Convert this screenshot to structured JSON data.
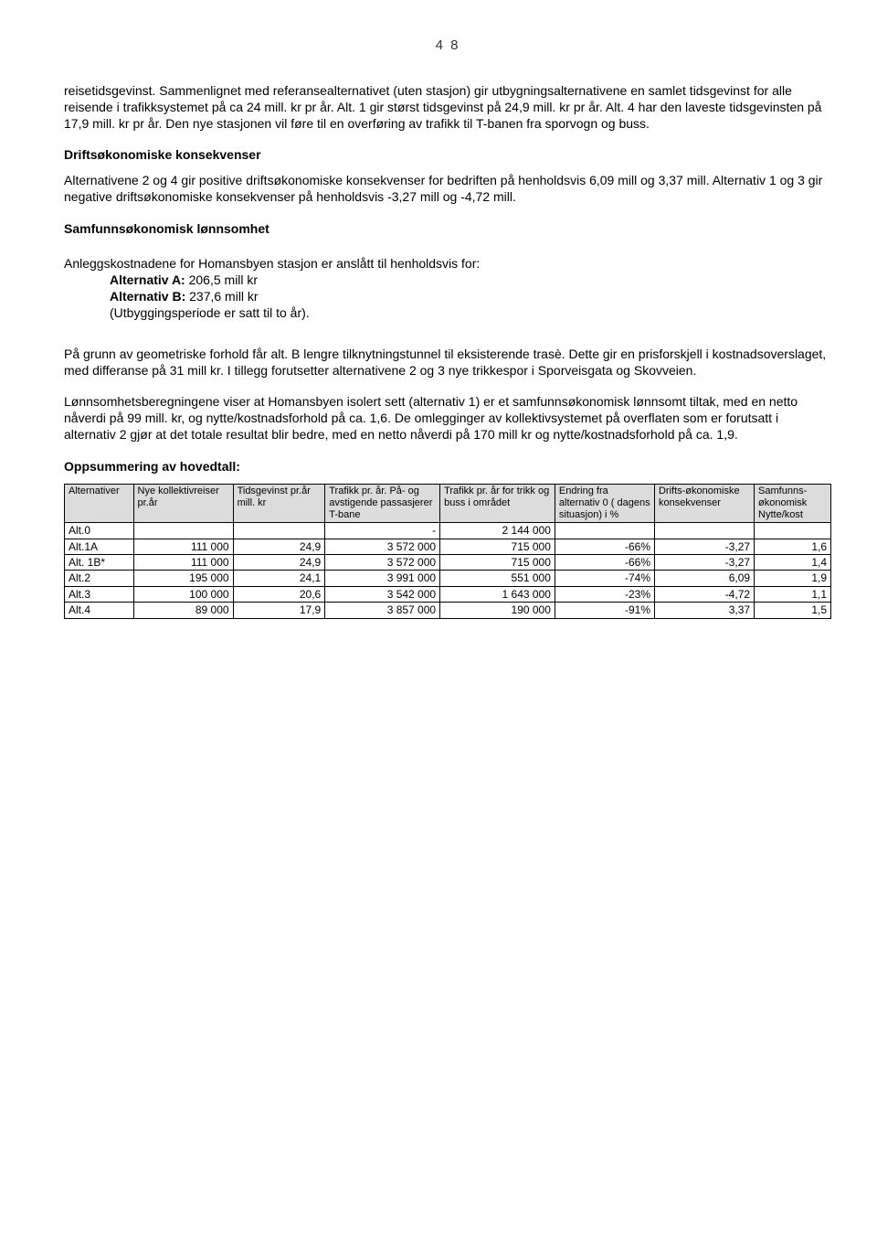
{
  "page_number": "4 8",
  "paragraphs": {
    "p1": "reisetidsgevinst. Sammenlignet med referansealternativet (uten stasjon) gir utbygningsalternativene en samlet tidsgevinst for alle reisende i trafikksystemet på ca 24 mill. kr pr år.  Alt. 1 gir størst tidsgevinst på 24,9 mill. kr pr år. Alt. 4 har den laveste tidsgevinsten på 17,9 mill. kr pr år. Den nye stasjonen vil føre til en overføring av trafikk til T-banen fra sporvogn og buss.",
    "h1": "Driftsøkonomiske konsekvenser",
    "p2": "Alternativene 2 og 4 gir positive driftsøkonomiske konsekvenser for bedriften på henholdsvis 6,09 mill og 3,37 mill. Alternativ 1 og 3 gir negative driftsøkonomiske konsekvenser på henholdsvis -3,27 mill og -4,72 mill.",
    "h2": "Samfunnsøkonomisk lønnsomhet",
    "p3a": "Anleggskostnadene for Homansbyen stasjon er anslått til henholdsvis for:",
    "altA_label": "Alternativ A:",
    "altA_val": " 206,5 mill kr",
    "altB_label": "Alternativ B:",
    "altB_val": " 237,6 mill kr",
    "p3d": "(Utbyggingsperiode er satt til to år).",
    "p4": "På grunn av geometriske forhold får alt. B lengre tilknytningstunnel til eksisterende trasè. Dette gir en prisforskjell i kostnadsoverslaget, med differanse på 31 mill kr.  I tillegg forutsetter alternativene 2 og 3 nye trikkespor i Sporveisgata og Skovveien.",
    "p5": "Lønnsomhetsberegningene viser at Homansbyen isolert sett (alternativ 1) er et samfunnsøkonomisk lønnsomt tiltak, med en netto nåverdi på 99 mill. kr, og nytte/kostnadsforhold på ca. 1,6.  De omlegginger av kollektivsystemet på overflaten som er forutsatt i alternativ 2 gjør at det totale resultat blir bedre, med en netto nåverdi på 170 mill kr og nytte/kostnadsforhold på ca. 1,9.",
    "h3": "Oppsummering av hovedtall:"
  },
  "table": {
    "header_bg": "#dcdcdc",
    "columns": [
      "Alternativer",
      "Nye kollektivreiser pr.år",
      "Tidsgevinst pr.år mill. kr",
      "Trafikk pr. år. På- og avstigende passasjerer T-bane",
      "Trafikk pr. år for trikk og buss i området",
      "Endring fra alternativ 0 ( dagens situasjon) i %",
      "Drifts-økonomiske konsekvenser",
      "Samfunns-økonomisk Nytte/kost"
    ],
    "rows": [
      [
        "Alt.0",
        "",
        "",
        "-",
        "2 144 000",
        "",
        "",
        ""
      ],
      [
        "Alt.1A",
        "111 000",
        "24,9",
        "3 572 000",
        "715 000",
        "-66%",
        "-3,27",
        "1,6"
      ],
      [
        "Alt. 1B*",
        "111 000",
        "24,9",
        "3 572 000",
        "715 000",
        "-66%",
        "-3,27",
        "1,4"
      ],
      [
        "Alt.2",
        "195 000",
        "24,1",
        "3 991 000",
        "551 000",
        "-74%",
        "6,09",
        "1,9"
      ],
      [
        "Alt.3",
        "100 000",
        "20,6",
        "3 542 000",
        "1 643 000",
        "-23%",
        "-4,72",
        "1,1"
      ],
      [
        "Alt.4",
        "89 000",
        "17,9",
        "3 857 000",
        "190 000",
        "-91%",
        "3,37",
        "1,5"
      ]
    ],
    "col_widths": [
      "9%",
      "13%",
      "12%",
      "15%",
      "15%",
      "13%",
      "13%",
      "10%"
    ]
  }
}
